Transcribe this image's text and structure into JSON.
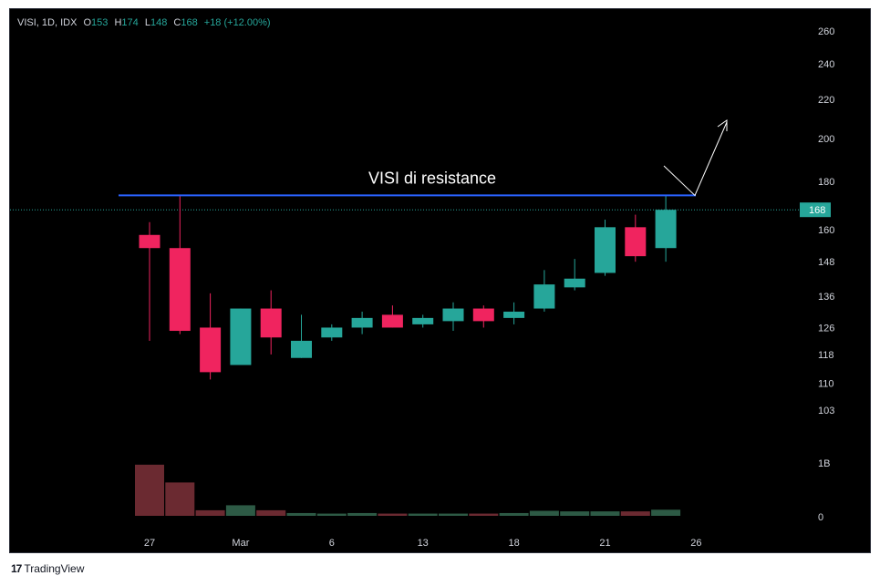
{
  "header": {
    "symbol": "VISI, 1D, IDX",
    "o_label": "O",
    "o_value": "153",
    "h_label": "H",
    "h_value": "174",
    "l_label": "L",
    "l_value": "148",
    "c_label": "C",
    "c_value": "168",
    "change": "+18 (+12.00%)"
  },
  "brand": {
    "logo": "17",
    "name": "TradingView"
  },
  "colors": {
    "up": "#26a69a",
    "down": "#f0245f",
    "vol_up": "#2d5a45",
    "vol_down": "#6b2a31",
    "resistance": "#2962ff",
    "grid_text": "#d1d4dc",
    "price_tag_bg": "#26a69a"
  },
  "chart_data": {
    "type": "candlestick",
    "annotation": "VISI di resistance",
    "resistance_level": 174,
    "current_price": "168",
    "y_ticks": [
      "260",
      "240",
      "220",
      "200",
      "180",
      "160",
      "148",
      "136",
      "126",
      "118",
      "110",
      "103"
    ],
    "y_tick_values": [
      260,
      240,
      220,
      200,
      180,
      160,
      148,
      136,
      126,
      118,
      110,
      103
    ],
    "volume_ticks": [
      "1B",
      "0"
    ],
    "x_ticks": [
      "27",
      "Mar",
      "6",
      "13",
      "18",
      "21",
      "26"
    ],
    "x_tick_index": [
      0,
      3,
      6,
      9,
      12,
      15,
      18
    ],
    "candles": [
      {
        "o": 158,
        "h": 163,
        "l": 122,
        "c": 153
      },
      {
        "o": 153,
        "h": 174,
        "l": 124,
        "c": 125
      },
      {
        "o": 126,
        "h": 137,
        "l": 111,
        "c": 113
      },
      {
        "o": 115,
        "h": 132,
        "l": 115,
        "c": 132
      },
      {
        "o": 132,
        "h": 138,
        "l": 118,
        "c": 123
      },
      {
        "o": 117,
        "h": 130,
        "l": 117,
        "c": 122
      },
      {
        "o": 123,
        "h": 127,
        "l": 122,
        "c": 126
      },
      {
        "o": 126,
        "h": 131,
        "l": 124,
        "c": 129
      },
      {
        "o": 130,
        "h": 133,
        "l": 126,
        "c": 126
      },
      {
        "o": 127,
        "h": 130,
        "l": 126,
        "c": 129
      },
      {
        "o": 128,
        "h": 134,
        "l": 125,
        "c": 132
      },
      {
        "o": 132,
        "h": 133,
        "l": 126,
        "c": 128
      },
      {
        "o": 129,
        "h": 134,
        "l": 127,
        "c": 131
      },
      {
        "o": 132,
        "h": 145,
        "l": 131,
        "c": 140
      },
      {
        "o": 139,
        "h": 149,
        "l": 138,
        "c": 142
      },
      {
        "o": 144,
        "h": 164,
        "l": 143,
        "c": 161
      },
      {
        "o": 161,
        "h": 166,
        "l": 148,
        "c": 150
      },
      {
        "o": 153,
        "h": 174,
        "l": 148,
        "c": 168
      }
    ],
    "volume_fraction": [
      0.92,
      0.6,
      0.1,
      0.19,
      0.1,
      0.05,
      0.04,
      0.05,
      0.04,
      0.04,
      0.04,
      0.04,
      0.05,
      0.09,
      0.08,
      0.08,
      0.08,
      0.11
    ],
    "volume_dir": [
      "down",
      "down",
      "down",
      "up",
      "down",
      "up",
      "up",
      "up",
      "down",
      "up",
      "up",
      "down",
      "up",
      "up",
      "up",
      "up",
      "down",
      "up"
    ]
  }
}
